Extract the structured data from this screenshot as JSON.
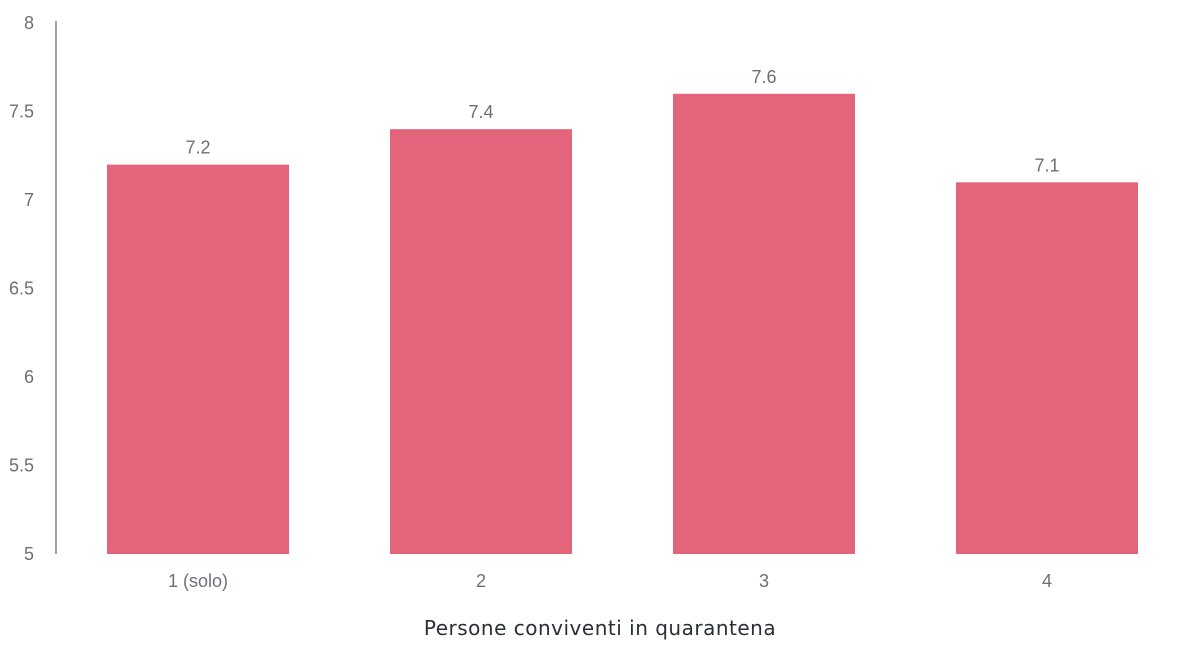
{
  "chart_data": {
    "type": "bar",
    "categories": [
      "1 (solo)",
      "2",
      "3",
      "4"
    ],
    "values": [
      7.2,
      7.4,
      7.6,
      7.1
    ],
    "data_labels": [
      "7.2",
      "7.4",
      "7.6",
      "7.1"
    ],
    "xlabel": "Persone conviventi in quarantena",
    "ylabel": "",
    "ylim": [
      5,
      8
    ],
    "y_ticks": [
      "5",
      "5.5",
      "6",
      "6.5",
      "7",
      "7.5",
      "8"
    ],
    "grid": false,
    "legend": "none",
    "bar_color": "#e3657b",
    "axis_color": "#5f646b",
    "label_color": "#6b7078"
  }
}
